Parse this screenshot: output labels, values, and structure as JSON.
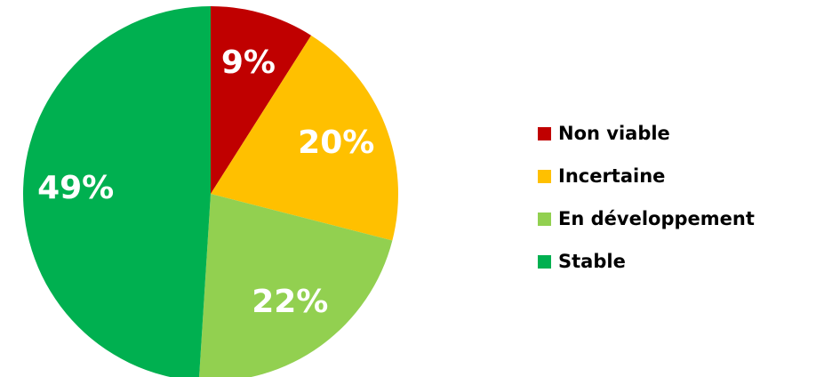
{
  "chart_data": {
    "type": "pie",
    "categories": [
      "Non viable",
      "Incertaine",
      "En développement",
      "Stable"
    ],
    "values": [
      9,
      20,
      22,
      49
    ],
    "value_labels": [
      "9%",
      "20%",
      "22%",
      "49%"
    ],
    "colors": [
      "#c00000",
      "#ffc000",
      "#92d050",
      "#00b050"
    ],
    "legend": "right"
  }
}
